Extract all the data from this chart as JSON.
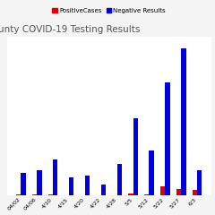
{
  "title": "unty COVID-19 Testing Results",
  "categories": [
    "04/02",
    "04/06",
    "4/10",
    "4/15",
    "4/20",
    "4/22",
    "4/28",
    "5/5",
    "5/12",
    "5/22",
    "5/27",
    "6/3"
  ],
  "negative": [
    20,
    22,
    32,
    16,
    18,
    10,
    28,
    68,
    40,
    100,
    130,
    22
  ],
  "positive": [
    1,
    1,
    1,
    0,
    0,
    0,
    0,
    2,
    1,
    8,
    6,
    5
  ],
  "neg_color": "#0000dd",
  "pos_color": "#dd0000",
  "legend_pos_label": "PositiveCases",
  "legend_neg_label": "Negative Results",
  "background_color": "#f4f4f4",
  "plot_background": "#ffffff",
  "grid_color": "#cccccc",
  "title_fontsize": 7.5,
  "tick_fontsize": 4.5,
  "bar_width": 0.3,
  "ylim_max": 140,
  "show_y_labels": false
}
